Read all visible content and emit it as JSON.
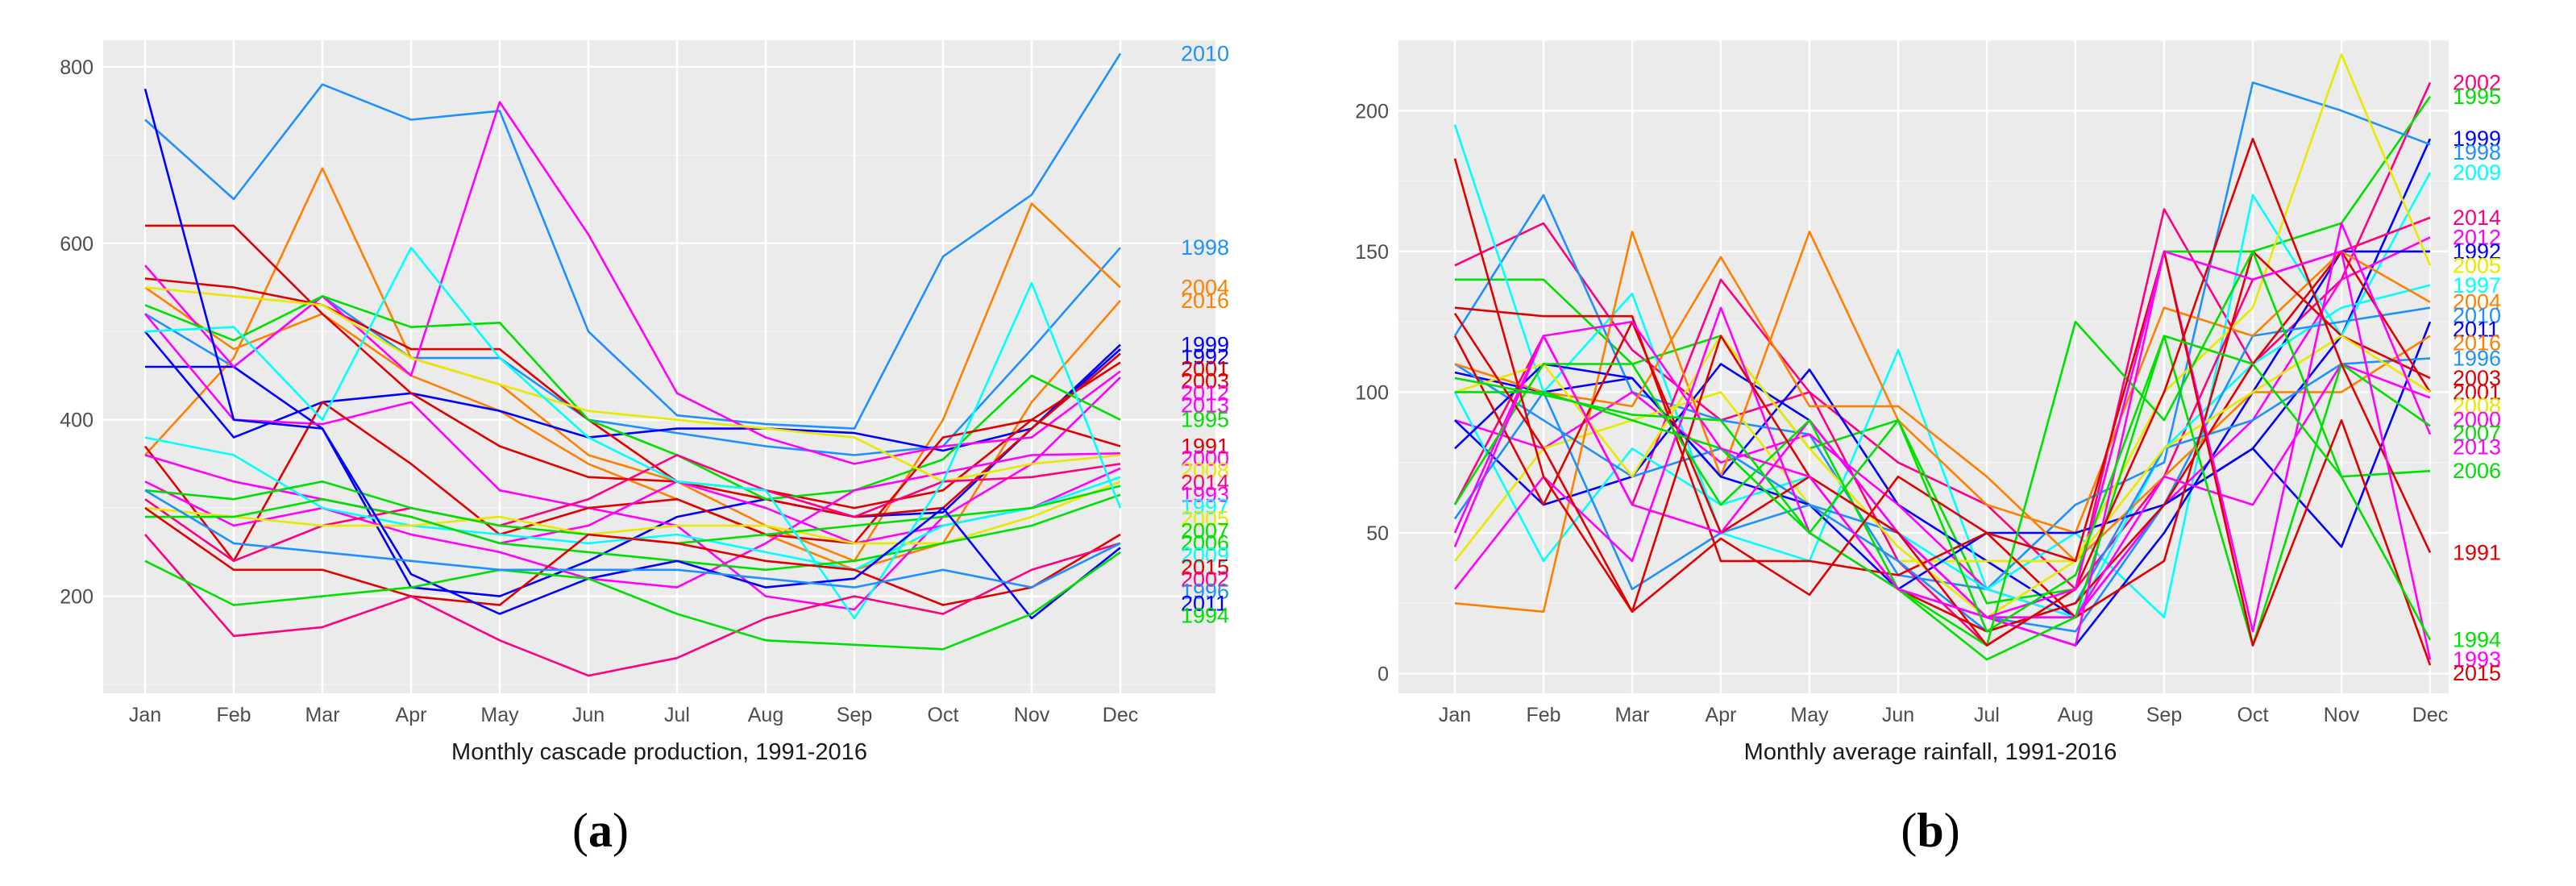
{
  "figure": {
    "panel_a_caption": {
      "open": "(",
      "letter": "a",
      "close": ")"
    },
    "panel_b_caption": {
      "open": "(",
      "letter": "b",
      "close": ")"
    }
  },
  "chart_data": [
    {
      "type": "line",
      "title": "",
      "xlabel": "Monthly cascade production, 1991-2016",
      "ylabel": "",
      "categories": [
        "Jan",
        "Feb",
        "Mar",
        "Apr",
        "May",
        "Jun",
        "Jul",
        "Aug",
        "Sep",
        "Oct",
        "Nov",
        "Dec"
      ],
      "ylim": [
        90,
        830
      ],
      "yticks": [
        200,
        400,
        600,
        800
      ],
      "grid": true,
      "legend": "direct labels at right end of each series",
      "series": [
        {
          "name": "2010",
          "color": "#1e90ff",
          "values": [
            740,
            650,
            780,
            740,
            750,
            500,
            405,
            395,
            390,
            585,
            655,
            815
          ]
        },
        {
          "name": "1998",
          "color": "#1e90ff",
          "values": [
            520,
            460,
            540,
            470,
            470,
            400,
            385,
            370,
            360,
            370,
            480,
            595
          ]
        },
        {
          "name": "2004",
          "color": "#ff8000",
          "values": [
            360,
            470,
            685,
            470,
            440,
            360,
            330,
            280,
            240,
            400,
            645,
            550
          ]
        },
        {
          "name": "2016",
          "color": "#ff8000",
          "values": [
            550,
            480,
            520,
            450,
            410,
            350,
            310,
            270,
            230,
            260,
            420,
            535
          ]
        },
        {
          "name": "1999",
          "color": "#0000ff",
          "values": [
            500,
            380,
            420,
            430,
            410,
            380,
            390,
            390,
            385,
            365,
            390,
            485
          ]
        },
        {
          "name": "1992",
          "color": "#0000ff",
          "values": [
            460,
            460,
            390,
            210,
            200,
            240,
            290,
            310,
            290,
            295,
            390,
            480
          ]
        },
        {
          "name": "2001",
          "color": "#e00000",
          "values": [
            620,
            620,
            520,
            430,
            370,
            335,
            330,
            310,
            290,
            300,
            390,
            475
          ]
        },
        {
          "name": "2003",
          "color": "#e00000",
          "values": [
            560,
            550,
            530,
            480,
            480,
            400,
            330,
            320,
            300,
            320,
            400,
            465
          ]
        },
        {
          "name": "2012",
          "color": "#ff00ff",
          "values": [
            575,
            460,
            540,
            450,
            760,
            610,
            430,
            380,
            350,
            370,
            380,
            455
          ]
        },
        {
          "name": "2013",
          "color": "#ff00ff",
          "values": [
            520,
            400,
            395,
            420,
            320,
            300,
            280,
            200,
            185,
            290,
            350,
            448
          ]
        },
        {
          "name": "1995",
          "color": "#00e000",
          "values": [
            530,
            490,
            540,
            505,
            510,
            400,
            360,
            310,
            320,
            355,
            450,
            400
          ]
        },
        {
          "name": "1991",
          "color": "#e00000",
          "values": [
            370,
            240,
            420,
            350,
            270,
            300,
            310,
            270,
            260,
            380,
            400,
            370
          ]
        },
        {
          "name": "2000",
          "color": "#ff00ff",
          "values": [
            330,
            280,
            300,
            270,
            250,
            220,
            210,
            260,
            320,
            340,
            360,
            362
          ]
        },
        {
          "name": "2008",
          "color": "#e8e800",
          "values": [
            550,
            540,
            530,
            470,
            440,
            410,
            400,
            390,
            380,
            330,
            350,
            360
          ]
        },
        {
          "name": "2014",
          "color": "#ff0080",
          "values": [
            310,
            240,
            280,
            300,
            280,
            310,
            360,
            320,
            290,
            330,
            335,
            350
          ]
        },
        {
          "name": "1993",
          "color": "#ff00ff",
          "values": [
            360,
            330,
            310,
            290,
            260,
            280,
            330,
            300,
            260,
            280,
            300,
            345
          ]
        },
        {
          "name": "1997",
          "color": "#00ffff",
          "values": [
            380,
            360,
            300,
            280,
            270,
            260,
            270,
            250,
            230,
            280,
            300,
            335
          ]
        },
        {
          "name": "2005",
          "color": "#e8e800",
          "values": [
            300,
            290,
            280,
            280,
            290,
            270,
            280,
            280,
            260,
            260,
            290,
            330
          ]
        },
        {
          "name": "2007",
          "color": "#00e000",
          "values": [
            320,
            310,
            330,
            300,
            280,
            270,
            260,
            270,
            280,
            290,
            300,
            325
          ]
        },
        {
          "name": "2006",
          "color": "#00e000",
          "values": [
            290,
            290,
            310,
            290,
            260,
            250,
            240,
            230,
            240,
            260,
            280,
            315
          ]
        },
        {
          "name": "2009",
          "color": "#00ffff",
          "values": [
            500,
            505,
            400,
            595,
            470,
            380,
            330,
            320,
            175,
            330,
            555,
            300
          ]
        },
        {
          "name": "2015",
          "color": "#e00000",
          "values": [
            300,
            230,
            230,
            200,
            190,
            270,
            260,
            240,
            230,
            190,
            210,
            270
          ]
        },
        {
          "name": "2002",
          "color": "#ff0080",
          "values": [
            270,
            155,
            165,
            200,
            150,
            110,
            130,
            175,
            200,
            180,
            230,
            260
          ]
        },
        {
          "name": "2011",
          "color": "#0000ff",
          "values": [
            775,
            400,
            390,
            225,
            180,
            220,
            240,
            210,
            220,
            300,
            175,
            255
          ]
        },
        {
          "name": "1994",
          "color": "#00e000",
          "values": [
            240,
            190,
            200,
            210,
            230,
            220,
            180,
            150,
            145,
            140,
            180,
            250
          ]
        },
        {
          "name": "1996",
          "color": "#1e90ff",
          "values": [
            320,
            260,
            250,
            240,
            230,
            230,
            230,
            220,
            210,
            230,
            210,
            260
          ]
        }
      ]
    },
    {
      "type": "line",
      "title": "",
      "xlabel": "Monthly average rainfall, 1991-2016",
      "ylabel": "",
      "categories": [
        "Jan",
        "Feb",
        "Mar",
        "Apr",
        "May",
        "Jun",
        "Jul",
        "Aug",
        "Sep",
        "Oct",
        "Nov",
        "Dec"
      ],
      "ylim": [
        -7,
        225
      ],
      "yticks": [
        0,
        50,
        100,
        150,
        200
      ],
      "grid": true,
      "legend": "direct labels at right end of each series",
      "series": [
        {
          "name": "2002",
          "color": "#ff0080",
          "values": [
            145,
            160,
            115,
            90,
            100,
            75,
            60,
            30,
            165,
            110,
            140,
            210
          ]
        },
        {
          "name": "1995",
          "color": "#00e000",
          "values": [
            140,
            140,
            110,
            120,
            80,
            90,
            25,
            30,
            150,
            150,
            160,
            205
          ]
        },
        {
          "name": "1999",
          "color": "#0000ff",
          "values": [
            107,
            100,
            105,
            70,
            108,
            60,
            40,
            20,
            60,
            80,
            120,
            190
          ]
        },
        {
          "name": "1998",
          "color": "#1e90ff",
          "values": [
            120,
            170,
            100,
            90,
            85,
            35,
            30,
            60,
            75,
            210,
            200,
            188
          ]
        },
        {
          "name": "2009",
          "color": "#00ffff",
          "values": [
            195,
            100,
            135,
            50,
            40,
            115,
            30,
            50,
            20,
            170,
            120,
            178
          ]
        },
        {
          "name": "2014",
          "color": "#ff0080",
          "values": [
            60,
            120,
            60,
            140,
            100,
            40,
            10,
            30,
            70,
            140,
            150,
            162
          ]
        },
        {
          "name": "2012",
          "color": "#ff00ff",
          "values": [
            90,
            80,
            100,
            75,
            85,
            60,
            30,
            20,
            60,
            90,
            140,
            155
          ]
        },
        {
          "name": "1992",
          "color": "#0000ff",
          "values": [
            90,
            60,
            70,
            110,
            90,
            50,
            20,
            10,
            50,
            100,
            150,
            150
          ]
        },
        {
          "name": "2005",
          "color": "#e8e800",
          "values": [
            40,
            80,
            90,
            100,
            60,
            40,
            40,
            40,
            100,
            130,
            220,
            145
          ]
        },
        {
          "name": "1997",
          "color": "#00ffff",
          "values": [
            100,
            40,
            80,
            60,
            70,
            50,
            30,
            20,
            80,
            110,
            130,
            138
          ]
        },
        {
          "name": "2010",
          "color": "#1e90ff",
          "values": [
            110,
            90,
            70,
            80,
            60,
            50,
            20,
            15,
            60,
            120,
            125,
            130
          ]
        },
        {
          "name": "2004",
          "color": "#ff8000",
          "values": [
            25,
            22,
            157,
            70,
            157,
            90,
            60,
            50,
            130,
            120,
            150,
            132
          ]
        },
        {
          "name": "2011",
          "color": "#0000ff",
          "values": [
            80,
            110,
            105,
            70,
            60,
            30,
            50,
            50,
            60,
            80,
            45,
            125
          ]
        },
        {
          "name": "2016",
          "color": "#ff8000",
          "values": [
            110,
            100,
            95,
            148,
            95,
            95,
            70,
            40,
            70,
            100,
            100,
            120
          ]
        },
        {
          "name": "1996",
          "color": "#1e90ff",
          "values": [
            55,
            100,
            30,
            50,
            60,
            40,
            15,
            25,
            80,
            90,
            110,
            112
          ]
        },
        {
          "name": "2003",
          "color": "#e00000",
          "values": [
            130,
            127,
            127,
            40,
            40,
            35,
            50,
            20,
            40,
            150,
            120,
            105
          ]
        },
        {
          "name": "2001",
          "color": "#e00000",
          "values": [
            120,
            60,
            125,
            50,
            70,
            30,
            15,
            25,
            60,
            110,
            150,
            100
          ]
        },
        {
          "name": "2008",
          "color": "#e8e800",
          "values": [
            100,
            110,
            70,
            120,
            80,
            45,
            20,
            40,
            80,
            100,
            120,
            100
          ]
        },
        {
          "name": "2000",
          "color": "#ff00ff",
          "values": [
            30,
            70,
            40,
            130,
            50,
            30,
            20,
            20,
            70,
            60,
            110,
            98
          ]
        },
        {
          "name": "2013",
          "color": "#ff00ff",
          "values": [
            50,
            120,
            60,
            50,
            90,
            50,
            20,
            10,
            150,
            15,
            160,
            85
          ]
        },
        {
          "name": "2007",
          "color": "#00e000",
          "values": [
            60,
            110,
            110,
            60,
            90,
            30,
            5,
            20,
            120,
            10,
            110,
            88
          ]
        },
        {
          "name": "2006",
          "color": "#00e000",
          "values": [
            100,
            100,
            90,
            80,
            50,
            30,
            10,
            125,
            90,
            150,
            70,
            72
          ]
        },
        {
          "name": "1991",
          "color": "#e00000",
          "values": [
            183,
            70,
            22,
            120,
            70,
            50,
            10,
            30,
            100,
            190,
            110,
            43
          ]
        },
        {
          "name": "2015",
          "color": "#e00000",
          "values": [
            128,
            80,
            22,
            48,
            28,
            70,
            50,
            40,
            150,
            10,
            90,
            3
          ]
        },
        {
          "name": "1993",
          "color": "#ff00ff",
          "values": [
            45,
            120,
            125,
            80,
            70,
            30,
            20,
            30,
            150,
            140,
            150,
            5
          ]
        },
        {
          "name": "1994",
          "color": "#00e000",
          "values": [
            105,
            99,
            92,
            90,
            50,
            90,
            15,
            35,
            120,
            110,
            70,
            12
          ]
        }
      ]
    }
  ]
}
